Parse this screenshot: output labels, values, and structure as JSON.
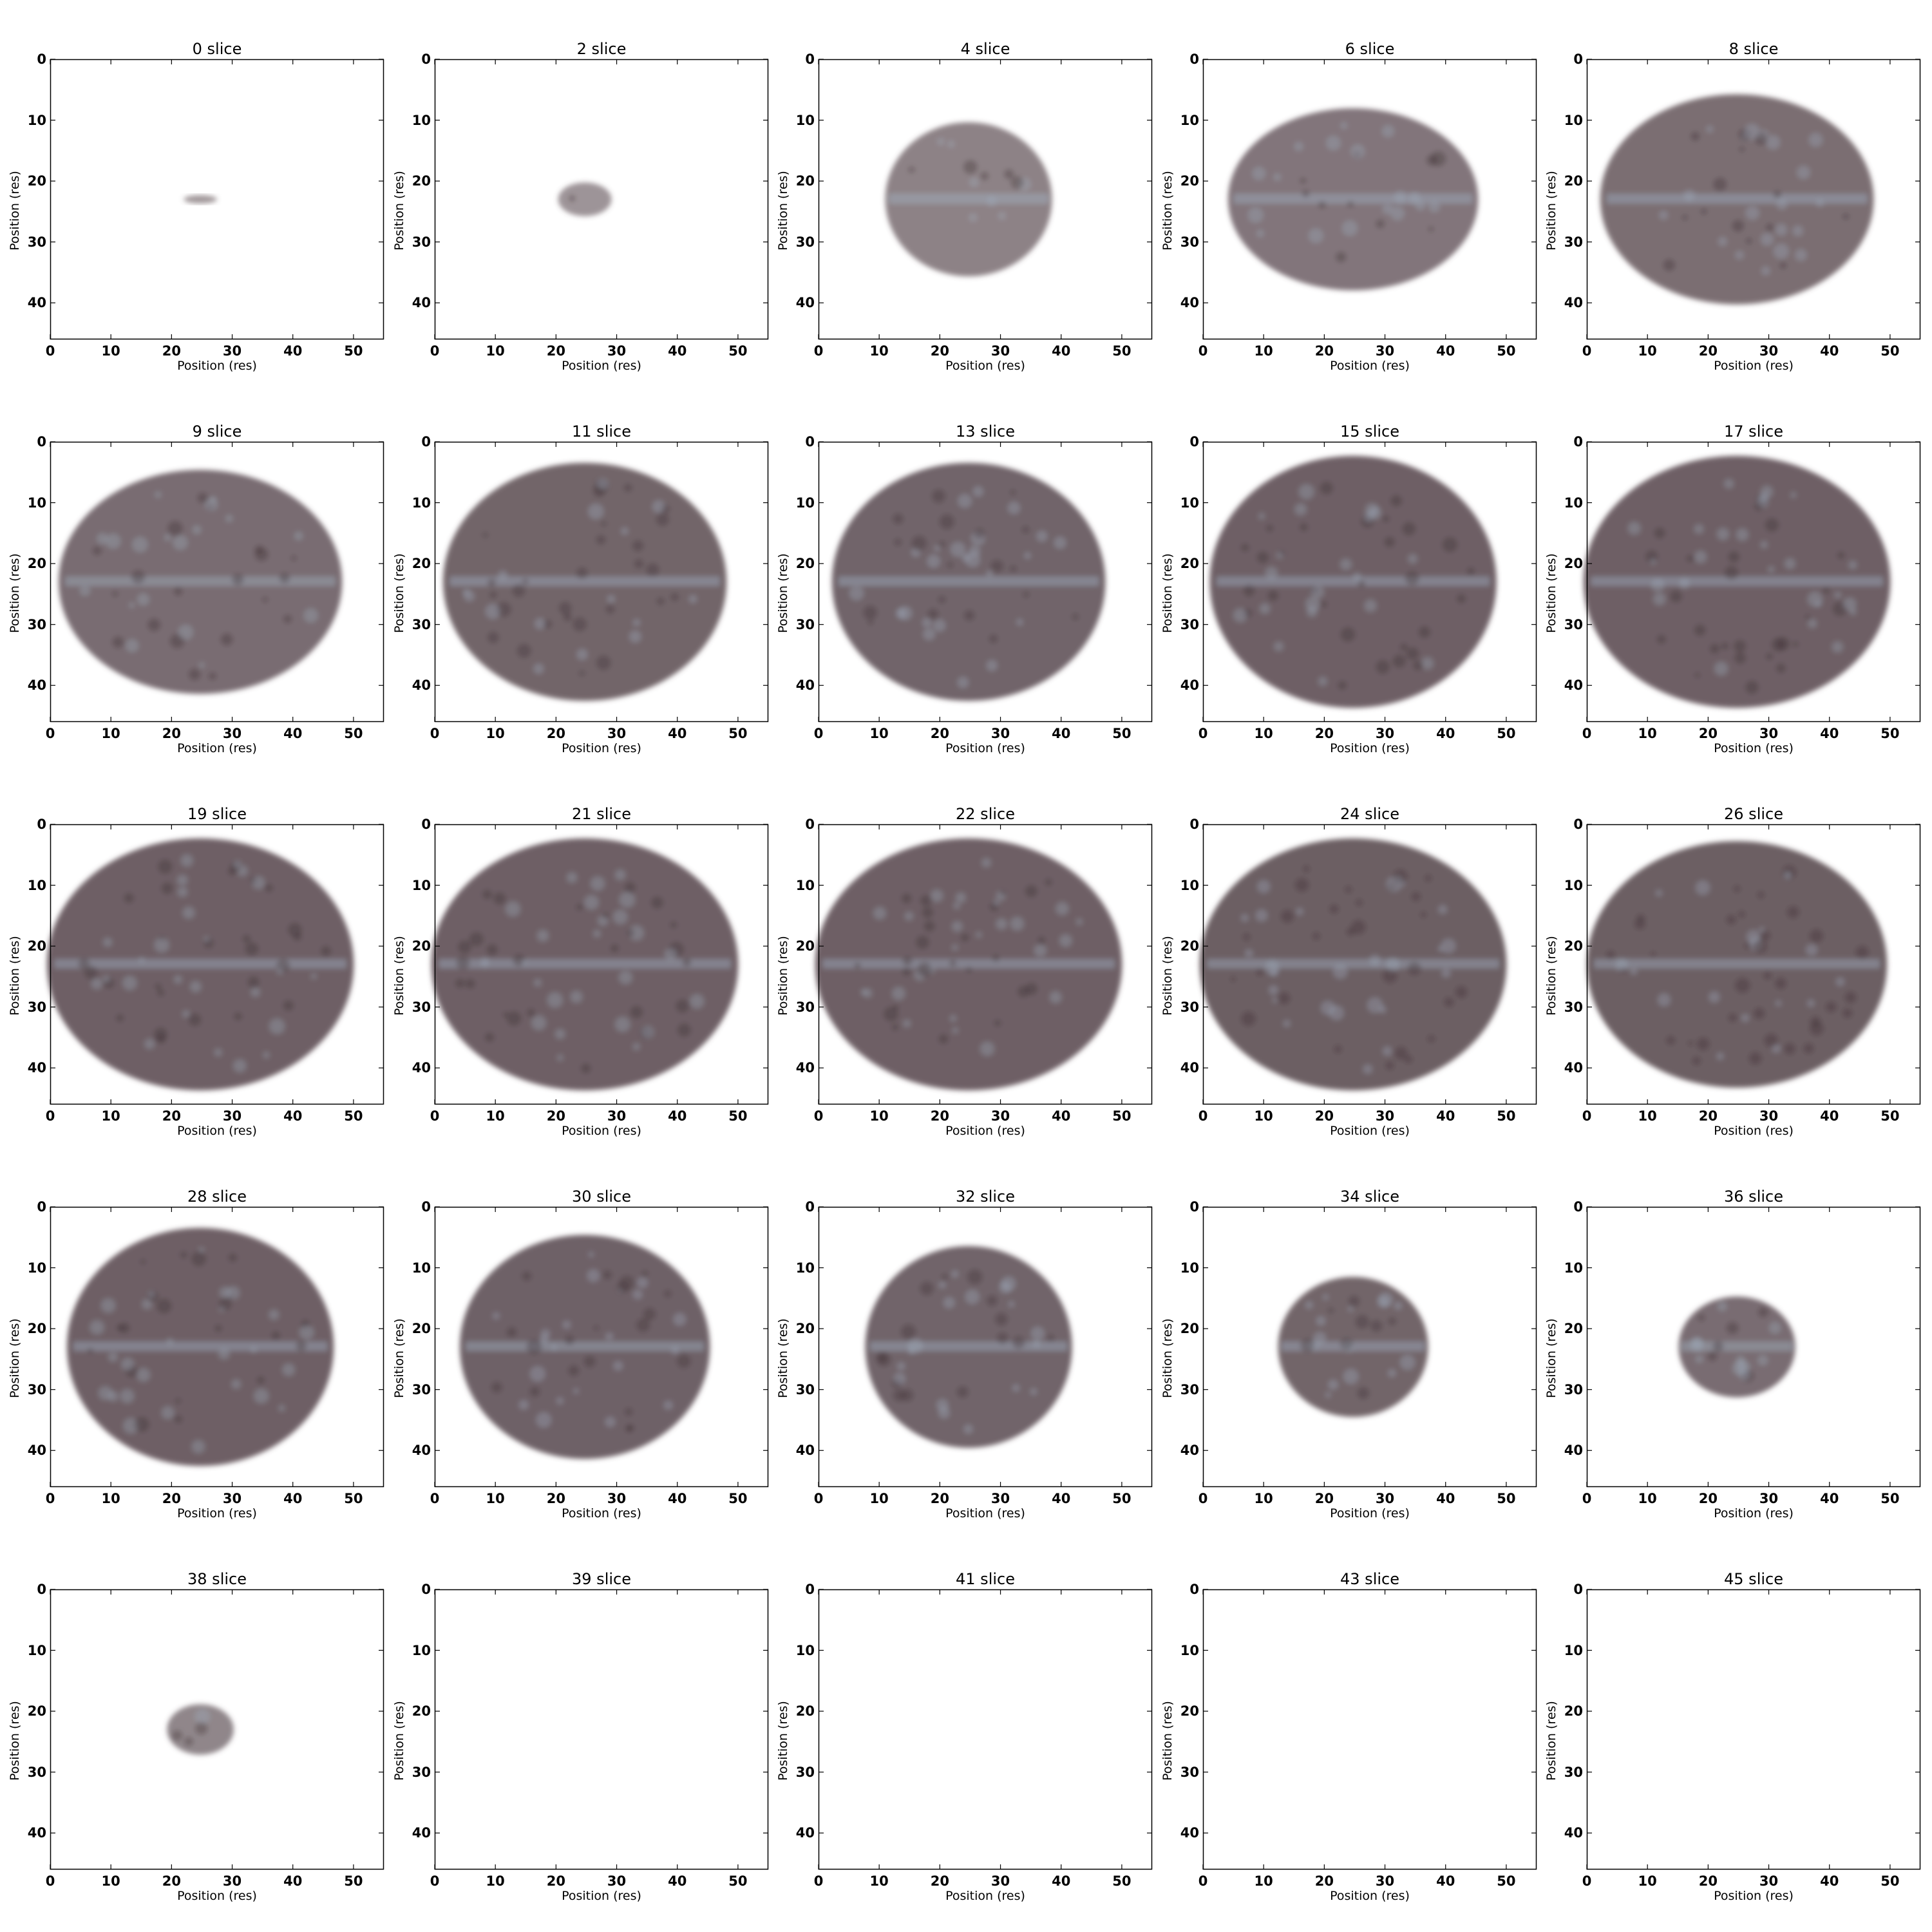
{
  "figure": {
    "xlabel": "Position (res)",
    "ylabel": "Position (res)",
    "xticks": [
      "0",
      "10",
      "20",
      "30",
      "40",
      "50"
    ],
    "yticks": [
      "0",
      "10",
      "20",
      "30",
      "40"
    ],
    "xlim": [
      0,
      55
    ],
    "ylim": [
      46,
      0
    ],
    "colors": {
      "tissue": "#5a4a50",
      "highlight": "#a0b0c0",
      "background": "#ffffff",
      "axes": "#000000"
    }
  },
  "panels": [
    {
      "title": "0 slice",
      "intensity": 0.05,
      "extent": [
        0.1,
        0.03
      ]
    },
    {
      "title": "2 slice",
      "intensity": 0.1,
      "extent": [
        0.16,
        0.12
      ]
    },
    {
      "title": "4 slice",
      "intensity": 0.4,
      "extent": [
        0.5,
        0.55
      ]
    },
    {
      "title": "6 slice",
      "intensity": 0.6,
      "extent": [
        0.75,
        0.65
      ]
    },
    {
      "title": "8 slice",
      "intensity": 0.7,
      "extent": [
        0.82,
        0.75
      ]
    },
    {
      "title": "9 slice",
      "intensity": 0.75,
      "extent": [
        0.85,
        0.8
      ]
    },
    {
      "title": "11 slice",
      "intensity": 0.85,
      "extent": [
        0.85,
        0.85
      ]
    },
    {
      "title": "13 slice",
      "intensity": 0.9,
      "extent": [
        0.82,
        0.85
      ]
    },
    {
      "title": "15 slice",
      "intensity": 0.95,
      "extent": [
        0.86,
        0.9
      ]
    },
    {
      "title": "17 slice",
      "intensity": 0.95,
      "extent": [
        0.92,
        0.9
      ]
    },
    {
      "title": "19 slice",
      "intensity": 0.95,
      "extent": [
        0.92,
        0.9
      ]
    },
    {
      "title": "21 slice",
      "intensity": 0.95,
      "extent": [
        0.92,
        0.9
      ]
    },
    {
      "title": "22 slice",
      "intensity": 0.95,
      "extent": [
        0.92,
        0.9
      ]
    },
    {
      "title": "24 slice",
      "intensity": 0.97,
      "extent": [
        0.92,
        0.9
      ]
    },
    {
      "title": "26 slice",
      "intensity": 0.97,
      "extent": [
        0.9,
        0.88
      ]
    },
    {
      "title": "28 slice",
      "intensity": 0.95,
      "extent": [
        0.8,
        0.85
      ]
    },
    {
      "title": "30 slice",
      "intensity": 0.92,
      "extent": [
        0.75,
        0.8
      ]
    },
    {
      "title": "32 slice",
      "intensity": 0.9,
      "extent": [
        0.62,
        0.72
      ]
    },
    {
      "title": "34 slice",
      "intensity": 0.85,
      "extent": [
        0.45,
        0.5
      ]
    },
    {
      "title": "36 slice",
      "intensity": 0.75,
      "extent": [
        0.35,
        0.36
      ]
    },
    {
      "title": "38 slice",
      "intensity": 0.35,
      "extent": [
        0.2,
        0.18
      ]
    },
    {
      "title": "39 slice",
      "intensity": 0,
      "extent": [
        0,
        0
      ]
    },
    {
      "title": "41 slice",
      "intensity": 0,
      "extent": [
        0,
        0
      ]
    },
    {
      "title": "43 slice",
      "intensity": 0,
      "extent": [
        0,
        0
      ]
    },
    {
      "title": "45 slice",
      "intensity": 0,
      "extent": [
        0,
        0
      ]
    }
  ]
}
